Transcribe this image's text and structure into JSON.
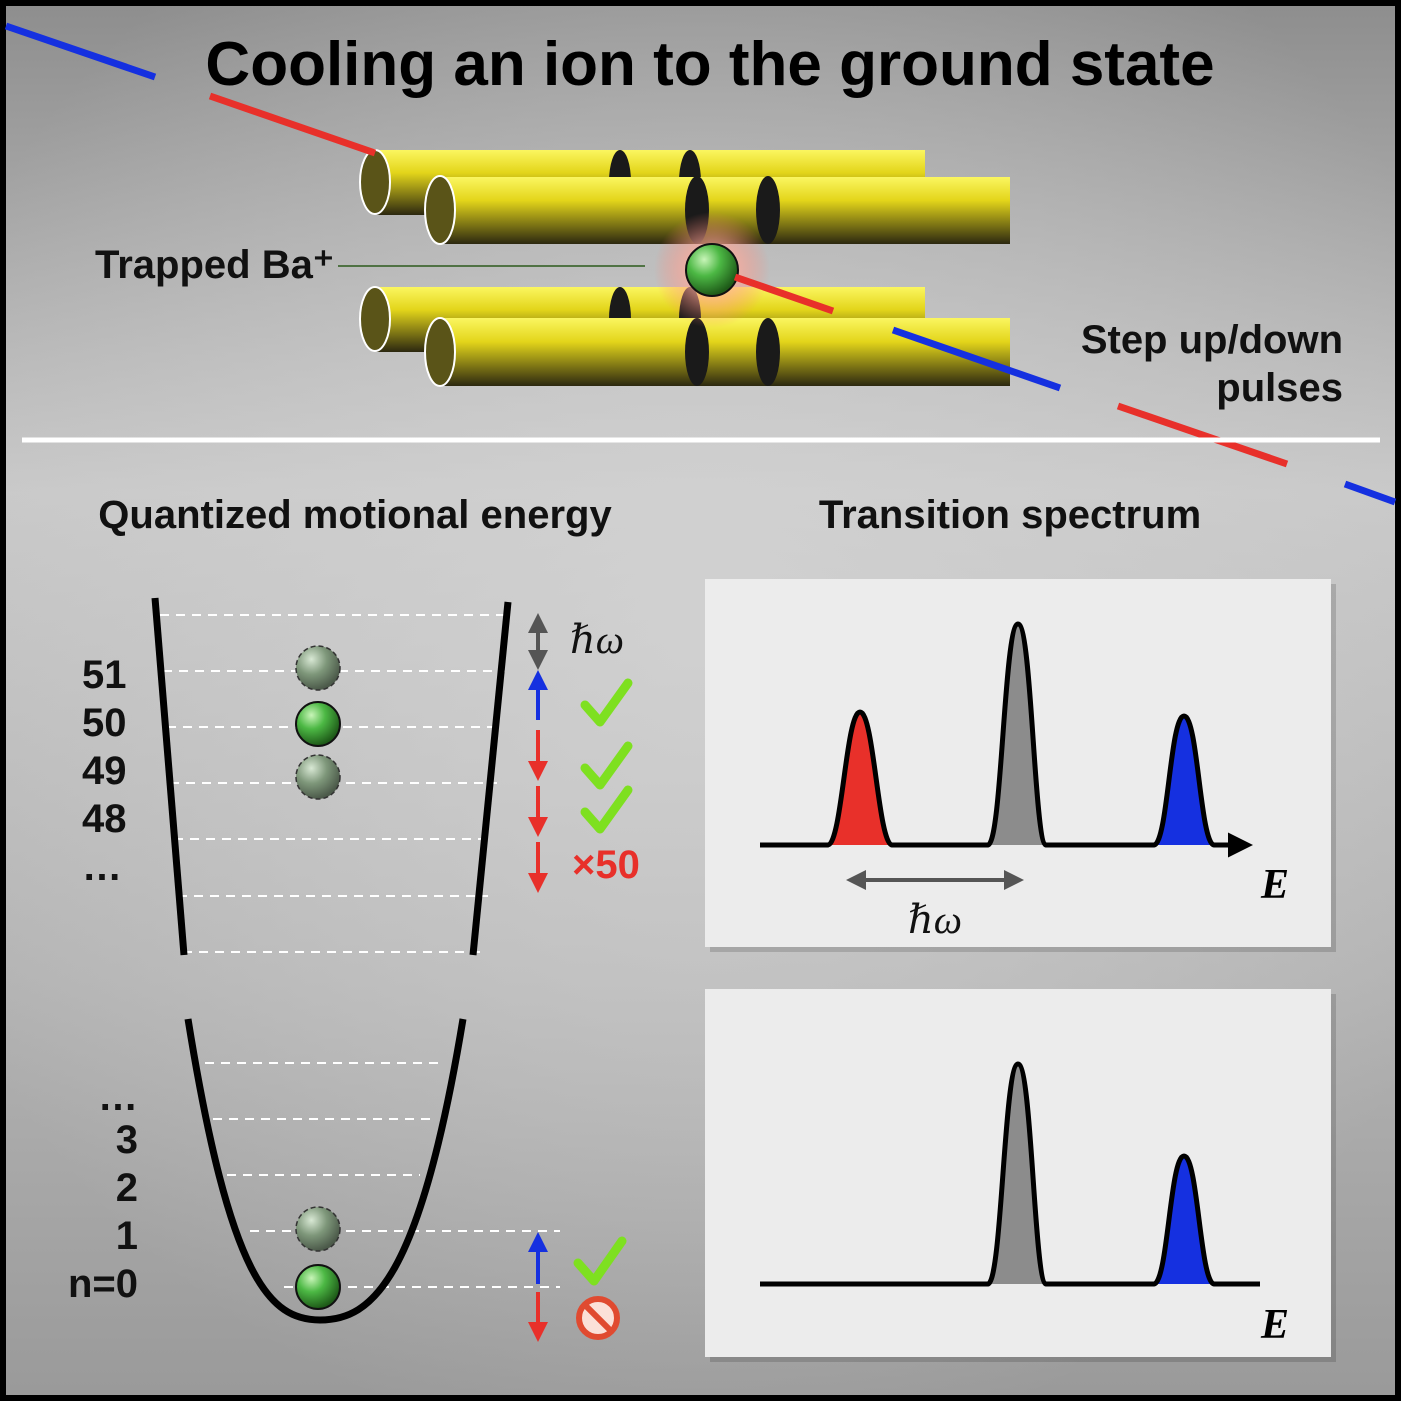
{
  "title": "Cooling an ion to the ground state",
  "trap": {
    "ion_label": "Trapped Ba⁺",
    "pulses_label_line1": "Step up/down",
    "pulses_label_line2": "pulses"
  },
  "energy_panel": {
    "heading": "Quantized motional energy",
    "upper_levels": [
      "51",
      "50",
      "49",
      "48",
      "…"
    ],
    "lower_levels": [
      "…",
      "3",
      "2",
      "1",
      "n=0"
    ],
    "spacing_label": "ℏω",
    "repeat_label": "×50"
  },
  "spectrum_panel": {
    "heading": "Transition spectrum",
    "axis_label": "E",
    "spacing_label": "ℏω"
  },
  "colors": {
    "red": "#e8302a",
    "blue": "#1530e0",
    "gray": "#8c8c8c",
    "check": "#7ee020",
    "ion_green": "#3fae3a",
    "rod_yellow": "#e8e020"
  },
  "icons": [
    "check-icon",
    "no-entry-icon",
    "ion-sphere-icon"
  ]
}
